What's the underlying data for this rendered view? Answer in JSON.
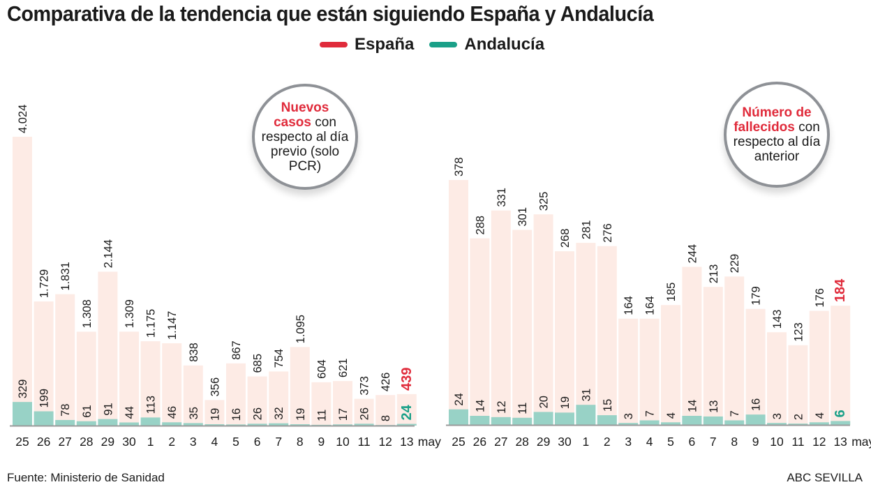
{
  "title": "Comparativa de la tendencia que están siguiendo España y Andalucía",
  "legend": [
    {
      "name": "España",
      "color": "#e02b3b"
    },
    {
      "name": "Andalucía",
      "color": "#1aa088"
    }
  ],
  "footer": {
    "source": "Fuente: Ministerio de Sanidad",
    "brand": "ABC SEVILLA"
  },
  "colors": {
    "espana_bar": "#fdebe5",
    "andalucia_bar": "#98d2c6",
    "espana_highlight": "#e02b3b",
    "andalucia_highlight": "#1aa088",
    "axis": "#9a9a9a"
  },
  "chart_data": [
    {
      "type": "bar",
      "badge": {
        "bold": "Nuevos casos",
        "rest": " con respecto al día previo (solo PCR)"
      },
      "categories": [
        "25",
        "26",
        "27",
        "28",
        "29",
        "30",
        "1",
        "2",
        "3",
        "4",
        "5",
        "6",
        "7",
        "8",
        "9",
        "10",
        "11",
        "12",
        "13"
      ],
      "x_suffix": "may",
      "series": [
        {
          "name": "España",
          "values": [
            4024,
            1729,
            1831,
            1308,
            2144,
            1309,
            1175,
            1147,
            838,
            356,
            867,
            685,
            754,
            1095,
            604,
            621,
            373,
            426,
            439
          ],
          "labels": [
            "4.024",
            "1.729",
            "1.831",
            "1.308",
            "2.144",
            "1.309",
            "1.175",
            "1.147",
            "838",
            "356",
            "867",
            "685",
            "754",
            "1.095",
            "604",
            "621",
            "373",
            "426",
            "439"
          ]
        },
        {
          "name": "Andalucía",
          "values": [
            329,
            199,
            78,
            61,
            91,
            44,
            113,
            46,
            35,
            19,
            16,
            26,
            32,
            19,
            11,
            17,
            26,
            8,
            24
          ],
          "labels": [
            "329",
            "199",
            "78",
            "61",
            "91",
            "44",
            "113",
            "46",
            "35",
            "19",
            "16",
            "26",
            "32",
            "19",
            "11",
            "17",
            "26",
            "8",
            "24"
          ]
        }
      ],
      "overlay": true,
      "grid": false
    },
    {
      "type": "bar",
      "badge": {
        "bold": "Número de fallecidos",
        "rest": " con respecto al día anterior"
      },
      "categories": [
        "25",
        "26",
        "27",
        "28",
        "29",
        "30",
        "1",
        "2",
        "3",
        "4",
        "5",
        "6",
        "7",
        "8",
        "9",
        "10",
        "11",
        "12",
        "13"
      ],
      "x_suffix": "may",
      "series": [
        {
          "name": "España",
          "values": [
            378,
            288,
            331,
            301,
            325,
            268,
            281,
            276,
            164,
            164,
            185,
            244,
            213,
            229,
            179,
            143,
            123,
            176,
            184
          ],
          "labels": [
            "378",
            "288",
            "331",
            "301",
            "325",
            "268",
            "281",
            "276",
            "164",
            "164",
            "185",
            "244",
            "213",
            "229",
            "179",
            "143",
            "123",
            "176",
            "184"
          ]
        },
        {
          "name": "Andalucía",
          "values": [
            24,
            14,
            12,
            11,
            20,
            19,
            31,
            15,
            3,
            7,
            4,
            14,
            13,
            7,
            16,
            3,
            2,
            4,
            6
          ],
          "labels": [
            "24",
            "14",
            "12",
            "11",
            "20",
            "19",
            "31",
            "15",
            "3",
            "7",
            "4",
            "14",
            "13",
            "7",
            "16",
            "3",
            "2",
            "4",
            "6"
          ]
        }
      ],
      "overlay": true,
      "grid": false
    }
  ]
}
